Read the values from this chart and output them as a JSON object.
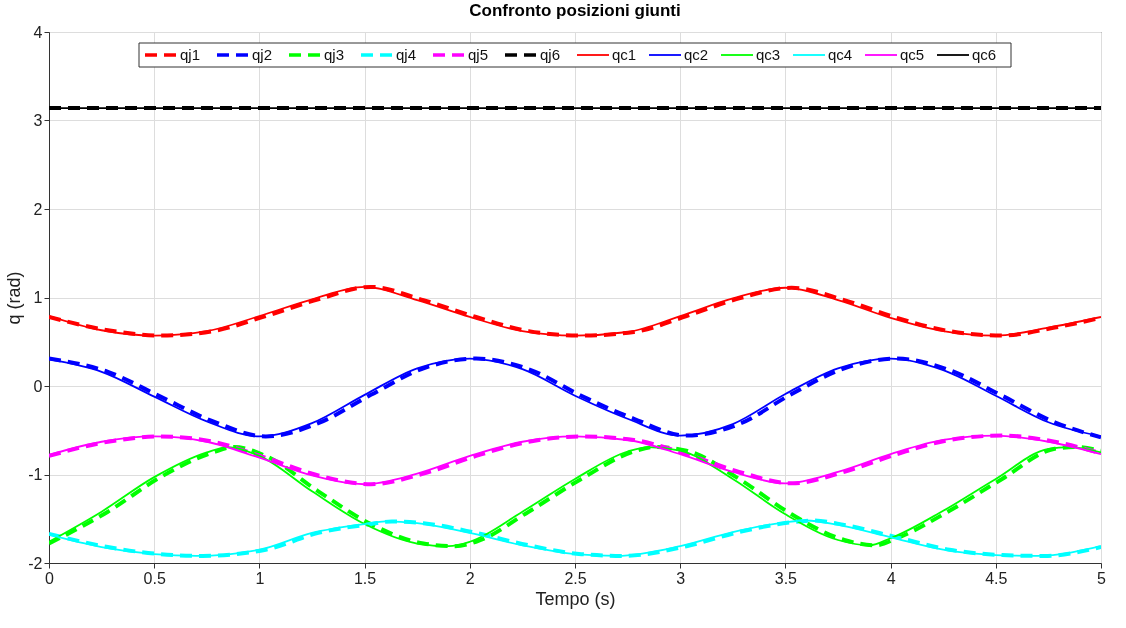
{
  "chart_data": {
    "type": "line",
    "title": "Confronto posizioni giunti",
    "xlabel": "Tempo (s)",
    "ylabel": "q (rad)",
    "xlim": [
      0,
      5
    ],
    "xticks": [
      0,
      0.5,
      1,
      1.5,
      2,
      2.5,
      3,
      3.5,
      4,
      4.5,
      5
    ],
    "ylim": [
      -2,
      4
    ],
    "yticks": [
      -2,
      -1,
      0,
      1,
      2,
      3,
      4
    ],
    "grid": true,
    "legend": "top",
    "series": [
      {
        "name": "qj1",
        "color": "#ff0000",
        "line_style": "dashed",
        "x": [
          0,
          0.28,
          0.53,
          0.78,
          1.03,
          1.28,
          1.53,
          1.78,
          2.03,
          2.28,
          2.53,
          2.78,
          3.03,
          3.28,
          3.53,
          3.78,
          4.03,
          4.28,
          4.53,
          4.78,
          5
        ],
        "values": [
          0.78,
          0.63,
          0.57,
          0.62,
          0.79,
          0.98,
          1.12,
          0.97,
          0.78,
          0.62,
          0.57,
          0.61,
          0.79,
          0.99,
          1.11,
          0.97,
          0.77,
          0.62,
          0.57,
          0.66,
          0.77
        ]
      },
      {
        "name": "qj2",
        "color": "#0000ff",
        "line_style": "dashed",
        "x": [
          0,
          0.28,
          0.53,
          0.78,
          1.03,
          1.28,
          1.53,
          1.78,
          2.03,
          2.28,
          2.53,
          2.78,
          3.03,
          3.28,
          3.53,
          3.78,
          4.03,
          4.28,
          4.53,
          4.78,
          5
        ],
        "values": [
          0.31,
          0.16,
          -0.12,
          -0.4,
          -0.57,
          -0.42,
          -0.1,
          0.2,
          0.31,
          0.19,
          -0.11,
          -0.37,
          -0.56,
          -0.43,
          -0.09,
          0.2,
          0.31,
          0.18,
          -0.11,
          -0.41,
          -0.58
        ]
      },
      {
        "name": "qj3",
        "color": "#00ff00",
        "line_style": "dashed",
        "x": [
          0,
          0.28,
          0.53,
          0.78,
          0.88,
          1.03,
          1.28,
          1.53,
          1.78,
          1.93,
          2.03,
          2.28,
          2.53,
          2.78,
          2.88,
          3.03,
          3.28,
          3.53,
          3.78,
          3.93,
          4.03,
          4.28,
          4.53,
          4.78,
          4.88,
          5
        ],
        "values": [
          -1.78,
          -1.42,
          -1.03,
          -0.75,
          -0.69,
          -0.79,
          -1.19,
          -1.56,
          -1.78,
          -1.81,
          -1.76,
          -1.42,
          -1.05,
          -0.74,
          -0.69,
          -0.73,
          -1.05,
          -1.45,
          -1.74,
          -1.8,
          -1.72,
          -1.41,
          -1.05,
          -0.71,
          -0.69,
          -0.73
        ]
      },
      {
        "name": "qj4",
        "color": "#00ffff",
        "line_style": "dashed",
        "x": [
          0,
          0.28,
          0.53,
          0.73,
          1.03,
          1.28,
          1.53,
          1.63,
          1.78,
          2.03,
          2.28,
          2.53,
          2.73,
          3.03,
          3.28,
          3.53,
          3.63,
          3.78,
          4.03,
          4.28,
          4.53,
          4.73,
          5
        ],
        "values": [
          -1.67,
          -1.82,
          -1.9,
          -1.92,
          -1.85,
          -1.66,
          -1.56,
          -1.53,
          -1.55,
          -1.66,
          -1.8,
          -1.9,
          -1.92,
          -1.81,
          -1.65,
          -1.54,
          -1.52,
          -1.57,
          -1.71,
          -1.85,
          -1.91,
          -1.92,
          -1.82
        ]
      },
      {
        "name": "qj5",
        "color": "#ff00ff",
        "line_style": "dashed",
        "x": [
          0,
          0.28,
          0.53,
          0.78,
          1.03,
          1.28,
          1.53,
          1.78,
          2.03,
          2.28,
          2.53,
          2.78,
          3.03,
          3.28,
          3.53,
          3.78,
          4.03,
          4.28,
          4.53,
          4.78,
          5
        ],
        "values": [
          -0.79,
          -0.63,
          -0.57,
          -0.63,
          -0.81,
          -1.01,
          -1.11,
          -0.99,
          -0.79,
          -0.63,
          -0.57,
          -0.61,
          -0.77,
          -0.97,
          -1.1,
          -0.97,
          -0.77,
          -0.61,
          -0.56,
          -0.63,
          -0.76
        ]
      },
      {
        "name": "qj6",
        "color": "#000000",
        "line_style": "dashed",
        "x": [
          0,
          5
        ],
        "values": [
          3.14,
          3.14
        ]
      },
      {
        "name": "qc1",
        "color": "#ff0000",
        "line_style": "solid",
        "x": [
          0,
          0.25,
          0.5,
          0.75,
          1,
          1.25,
          1.5,
          1.75,
          2,
          2.25,
          2.5,
          2.75,
          3,
          3.25,
          3.5,
          3.75,
          4,
          4.25,
          4.5,
          4.75,
          5
        ],
        "values": [
          0.79,
          0.63,
          0.57,
          0.62,
          0.79,
          0.98,
          1.12,
          0.97,
          0.78,
          0.62,
          0.57,
          0.61,
          0.79,
          0.99,
          1.11,
          0.97,
          0.77,
          0.62,
          0.57,
          0.66,
          0.78
        ]
      },
      {
        "name": "qc2",
        "color": "#0000ff",
        "line_style": "solid",
        "x": [
          0,
          0.25,
          0.5,
          0.75,
          1,
          1.25,
          1.5,
          1.75,
          2,
          2.25,
          2.5,
          2.75,
          3,
          3.25,
          3.5,
          3.75,
          4,
          4.25,
          4.5,
          4.75,
          5
        ],
        "values": [
          0.3,
          0.16,
          -0.12,
          -0.4,
          -0.57,
          -0.42,
          -0.1,
          0.2,
          0.31,
          0.19,
          -0.11,
          -0.37,
          -0.56,
          -0.43,
          -0.09,
          0.2,
          0.31,
          0.18,
          -0.11,
          -0.41,
          -0.57
        ]
      },
      {
        "name": "qc3",
        "color": "#00ff00",
        "line_style": "solid",
        "x": [
          0,
          0.25,
          0.5,
          0.75,
          0.85,
          1,
          1.25,
          1.5,
          1.75,
          1.9,
          2,
          2.25,
          2.5,
          2.75,
          2.85,
          3,
          3.25,
          3.5,
          3.75,
          3.9,
          4,
          4.25,
          4.5,
          4.75,
          4.85,
          5
        ],
        "values": [
          -1.76,
          -1.42,
          -1.03,
          -0.75,
          -0.69,
          -0.79,
          -1.19,
          -1.56,
          -1.78,
          -1.81,
          -1.76,
          -1.42,
          -1.05,
          -0.74,
          -0.69,
          -0.73,
          -1.05,
          -1.45,
          -1.74,
          -1.8,
          -1.72,
          -1.41,
          -1.05,
          -0.71,
          -0.69,
          -0.75
        ]
      },
      {
        "name": "qc4",
        "color": "#00ffff",
        "line_style": "solid",
        "x": [
          0,
          0.25,
          0.5,
          0.7,
          1,
          1.25,
          1.5,
          1.6,
          1.75,
          2,
          2.25,
          2.5,
          2.7,
          3,
          3.25,
          3.5,
          3.6,
          3.75,
          4,
          4.25,
          4.5,
          4.7,
          5
        ],
        "values": [
          -1.68,
          -1.82,
          -1.9,
          -1.92,
          -1.85,
          -1.66,
          -1.56,
          -1.53,
          -1.55,
          -1.66,
          -1.8,
          -1.9,
          -1.92,
          -1.81,
          -1.65,
          -1.54,
          -1.52,
          -1.57,
          -1.71,
          -1.85,
          -1.91,
          -1.92,
          -1.81
        ]
      },
      {
        "name": "qc5",
        "color": "#ff00ff",
        "line_style": "solid",
        "x": [
          0,
          0.25,
          0.5,
          0.75,
          1,
          1.25,
          1.5,
          1.75,
          2,
          2.25,
          2.5,
          2.75,
          3,
          3.25,
          3.5,
          3.75,
          4,
          4.25,
          4.5,
          4.75,
          5
        ],
        "values": [
          -0.78,
          -0.63,
          -0.57,
          -0.63,
          -0.81,
          -1.01,
          -1.11,
          -0.99,
          -0.79,
          -0.63,
          -0.57,
          -0.61,
          -0.77,
          -0.97,
          -1.1,
          -0.97,
          -0.77,
          -0.61,
          -0.56,
          -0.63,
          -0.77
        ]
      },
      {
        "name": "qc6",
        "color": "#000000",
        "line_style": "solid",
        "x": [
          0,
          5
        ],
        "values": [
          3.14,
          3.14
        ]
      }
    ]
  }
}
